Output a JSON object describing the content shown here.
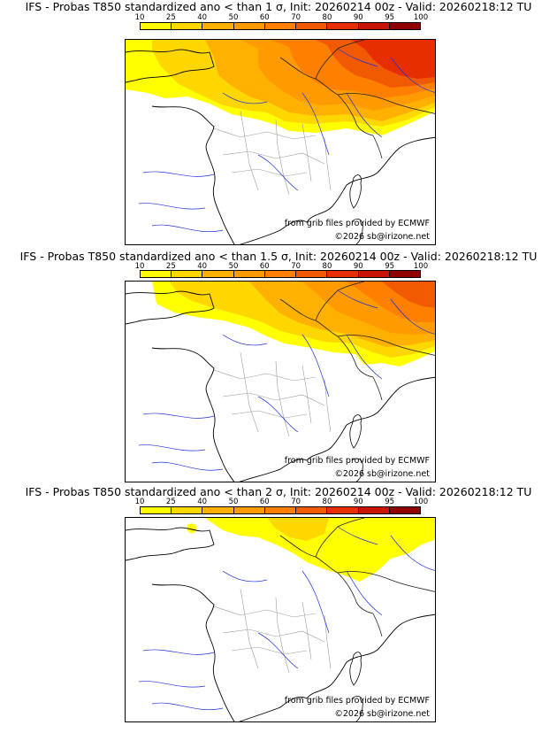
{
  "scale": {
    "labels": [
      "10",
      "25",
      "40",
      "50",
      "60",
      "70",
      "80",
      "90",
      "95",
      "100"
    ],
    "colors": [
      "#ffff00",
      "#ffd700",
      "#ffb000",
      "#ff9a00",
      "#ff7f00",
      "#f15a00",
      "#e62e00",
      "#c81400",
      "#8e0000"
    ]
  },
  "map": {
    "land_color": "#ffffff",
    "sea_color": "#ffffff",
    "coast_color": "#000000",
    "river_color": "#2030d8",
    "border_color": "#9a9a9a"
  },
  "panels": [
    {
      "title": "IFS - Probas T850  standardized ano < than 1 σ, Init: 20260214 00z - Valid: 20260218:12 TU",
      "source_credit": "from grib files provided by ECMWF",
      "copyright": "©2026 sb@irizone.net"
    },
    {
      "title": "IFS - Probas T850  standardized ano < than 1.5 σ, Init: 20260214 00z - Valid: 20260218:12 TU",
      "source_credit": "from grib files provided by ECMWF",
      "copyright": "©2026 sb@irizone.net"
    },
    {
      "title": "IFS - Probas T850  standardized ano < than 2 σ, Init: 20260214 00z - Valid: 20260218:12 TU",
      "source_credit": "from grib files provided by ECMWF",
      "copyright": "©2026 sb@irizone.net"
    }
  ]
}
